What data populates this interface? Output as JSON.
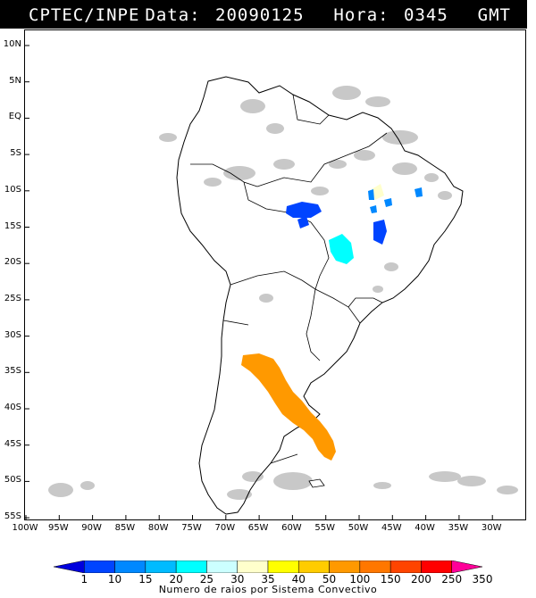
{
  "header": {
    "left": "CPTEC/INPE",
    "right": "Data: 20090125  Hora: 0345  GMT"
  },
  "lat_labels": [
    "10N",
    "5N",
    "EQ",
    "5S",
    "10S",
    "15S",
    "20S",
    "25S",
    "30S",
    "35S",
    "40S",
    "45S",
    "50S",
    "55S"
  ],
  "lon_labels": [
    "100W",
    "95W",
    "90W",
    "85W",
    "80W",
    "75W",
    "70W",
    "65W",
    "60W",
    "55W",
    "50W",
    "45W",
    "40W",
    "35W",
    "30W"
  ],
  "colorbar": {
    "labels": [
      "1",
      "10",
      "15",
      "20",
      "25",
      "30",
      "35",
      "40",
      "50",
      "100",
      "150",
      "200",
      "250",
      "350"
    ],
    "colors": [
      "#0000dd",
      "#0044ff",
      "#0088ff",
      "#00bbff",
      "#00ffff",
      "#ccffff",
      "#ffffcc",
      "#ffff00",
      "#ffcc00",
      "#ff9900",
      "#ff7700",
      "#ff4400",
      "#ff0000",
      "#ff0099"
    ],
    "title": "Numero de raios por Sistema Convectivo"
  },
  "map": {
    "extent": {
      "lon_min": -100,
      "lon_max": -28,
      "lat_min": -56,
      "lat_max": 12
    },
    "systems": [
      {
        "color": "#ff9900",
        "category": "100"
      },
      {
        "color": "#0044ff",
        "category": "10"
      },
      {
        "color": "#00ffff",
        "category": "25"
      },
      {
        "color": "#ffffcc",
        "category": "35"
      },
      {
        "color": "#0088ff",
        "category": "15"
      }
    ],
    "cloud_color": "#c8c8c8",
    "land_border_color": "#000000"
  }
}
